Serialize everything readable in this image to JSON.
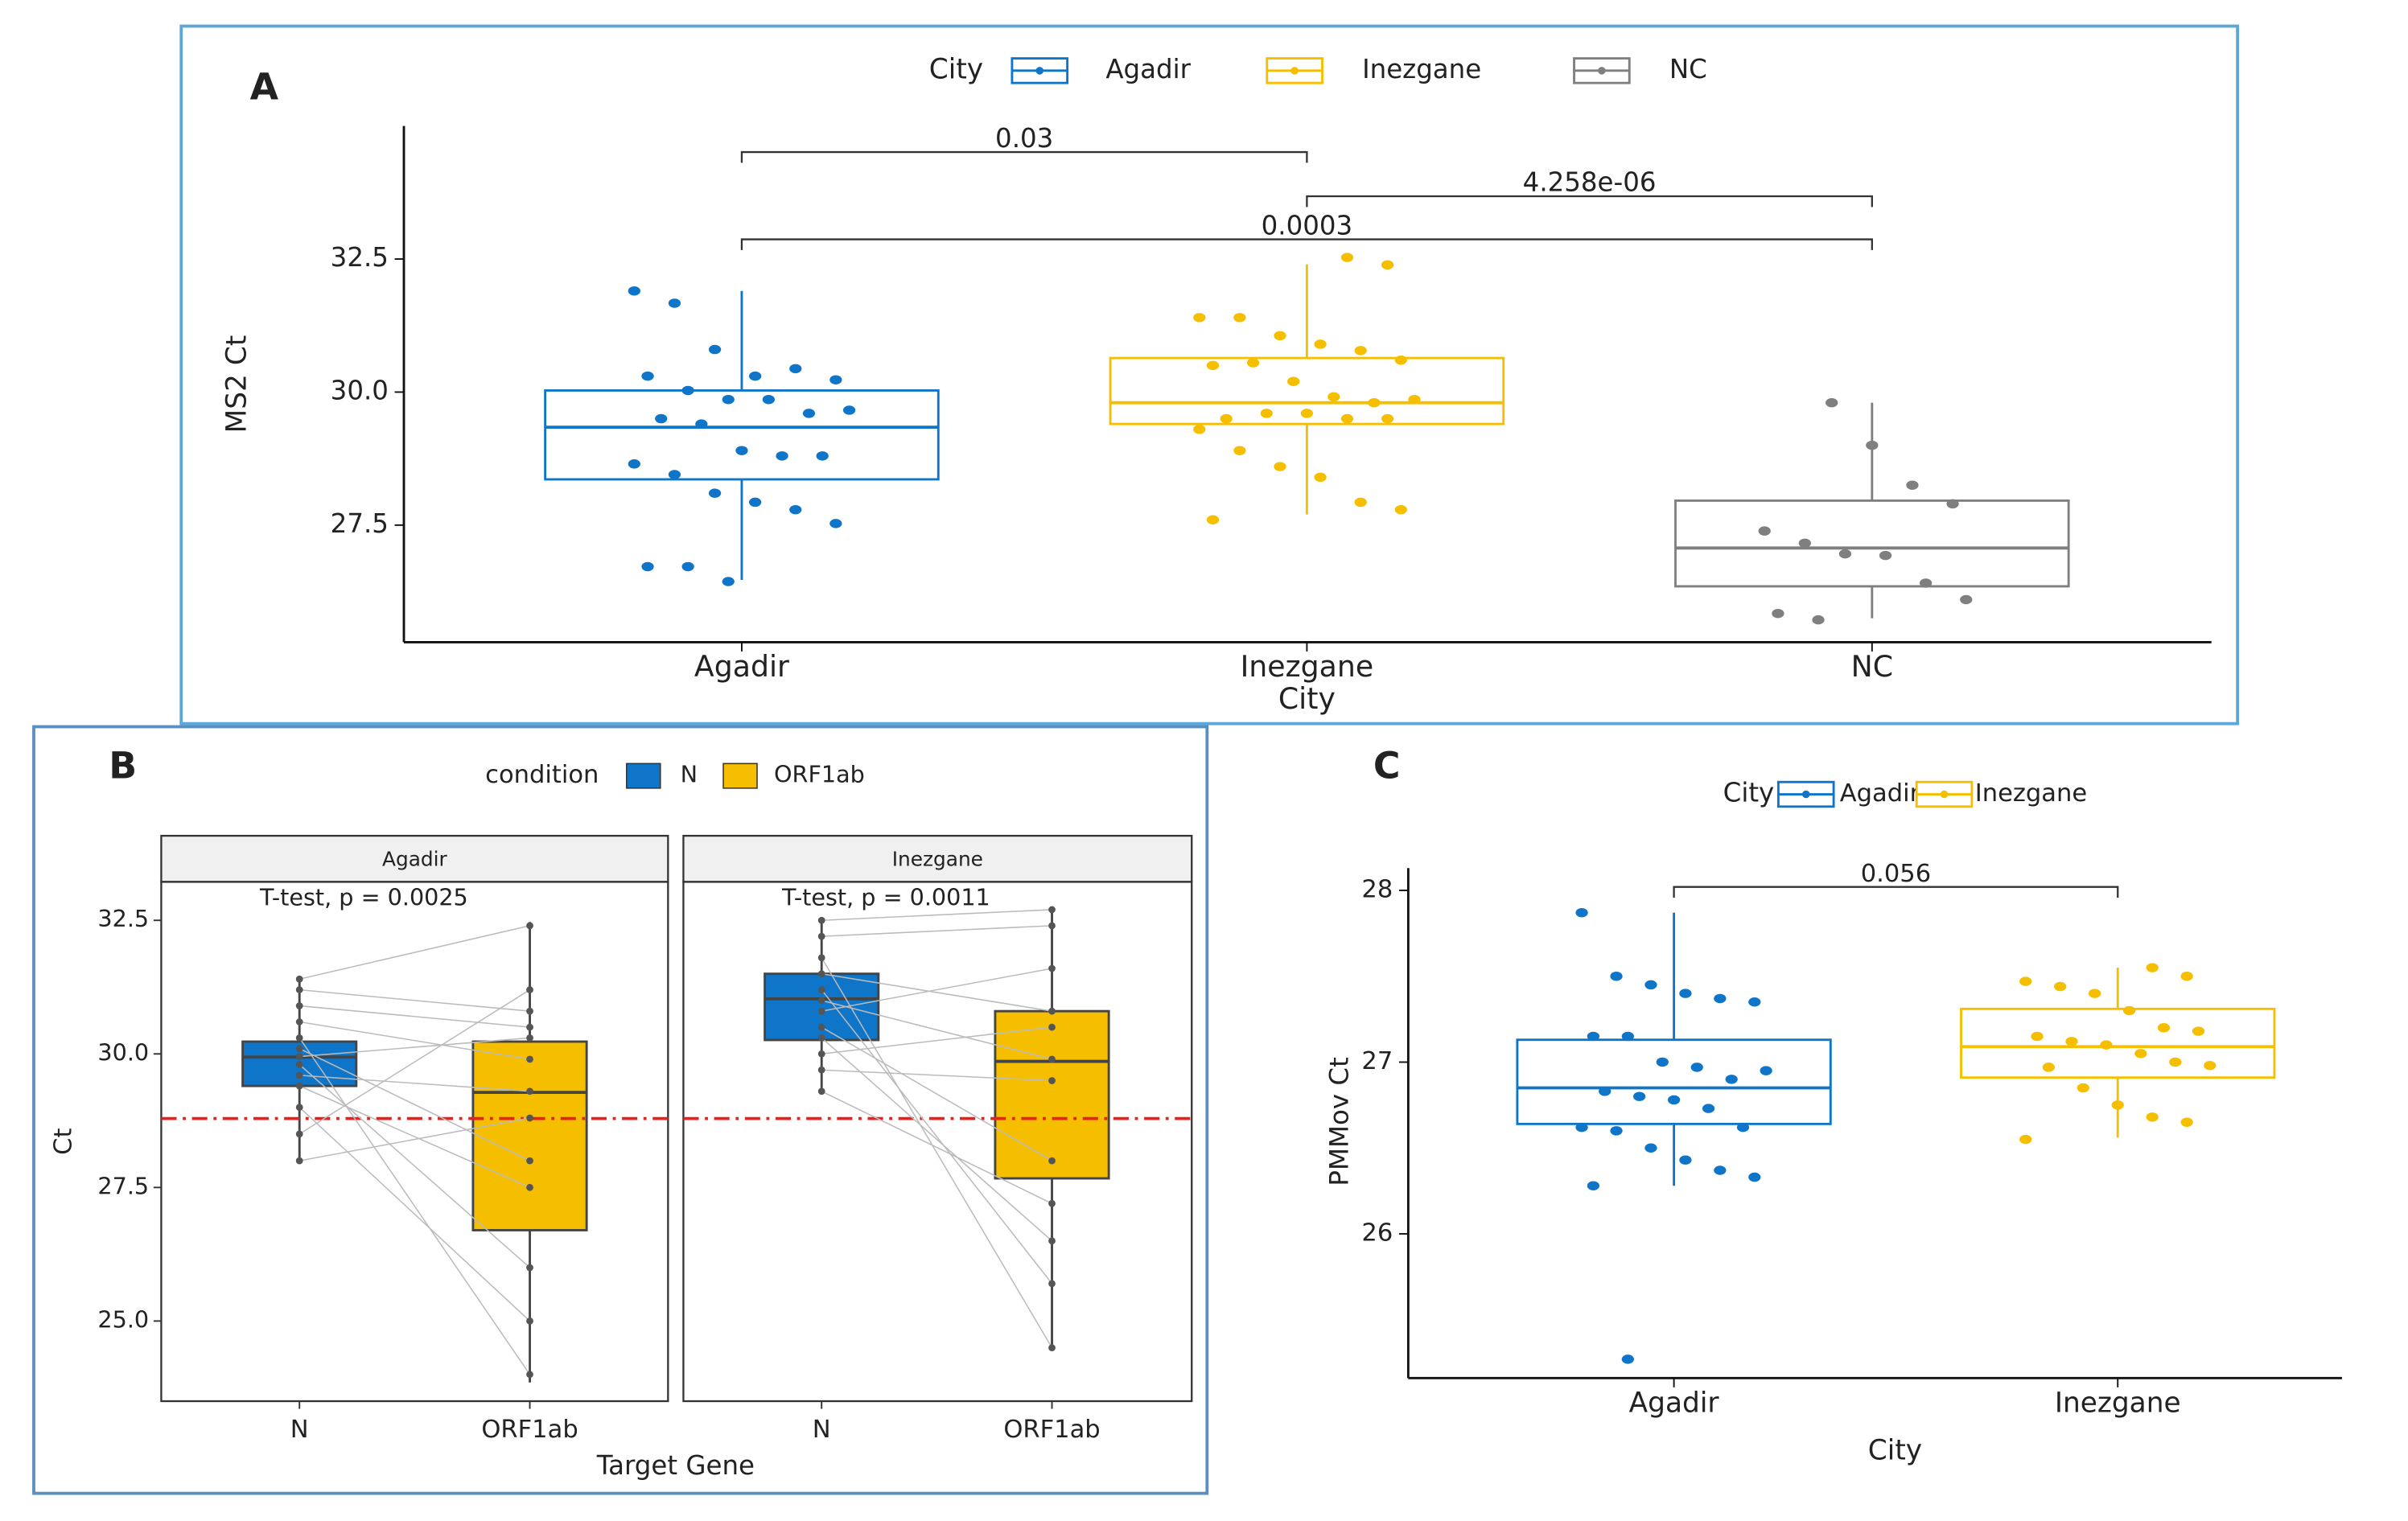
{
  "chart_data": [
    {
      "type": "box",
      "panel": "A",
      "legend_title": "City",
      "x_label": "City",
      "y_label": "MS2 Ct",
      "ylim": [
        25.3,
        35.0
      ],
      "yticks": [
        {
          "value": 27.5,
          "label": "27.5"
        },
        {
          "value": 30,
          "label": "30.0"
        },
        {
          "value": 32.5,
          "label": "32.5"
        }
      ],
      "series": [
        {
          "name": "Agadir",
          "color": "#0f75c9",
          "box": {
            "min": 26.47,
            "q1": 28.36,
            "median": 29.34,
            "q3": 30.03,
            "max": 31.9
          },
          "points": [
            31.9,
            31.67,
            30.8,
            30.3,
            30.44,
            30.23,
            30.3,
            30.03,
            29.86,
            29.86,
            29.6,
            29.66,
            29.5,
            29.4,
            28.9,
            28.8,
            28.8,
            28.65,
            28.45,
            28.1,
            27.93,
            27.79,
            27.53,
            26.72,
            26.72,
            26.44
          ]
        },
        {
          "name": "Inezgane",
          "color": "#f5bf00",
          "box": {
            "min": 27.7,
            "q1": 29.4,
            "median": 29.8,
            "q3": 30.64,
            "max": 32.4
          },
          "points": [
            32.53,
            32.39,
            31.4,
            31.4,
            31.06,
            30.9,
            30.78,
            30.6,
            30.5,
            30.55,
            30.2,
            29.91,
            29.8,
            29.86,
            29.5,
            29.6,
            29.6,
            29.5,
            29.5,
            29.3,
            28.9,
            28.6,
            28.4,
            27.93,
            27.79,
            27.6
          ]
        },
        {
          "name": "NC",
          "color": "#7f7f7f",
          "box": {
            "min": 25.75,
            "q1": 26.35,
            "median": 27.07,
            "q3": 27.96,
            "max": 29.8
          },
          "points": [
            29.8,
            29.0,
            28.25,
            27.9,
            27.39,
            27.16,
            26.96,
            26.93,
            26.41,
            26.1,
            25.84,
            25.72
          ]
        }
      ],
      "annotations": [
        {
          "label": "0.03",
          "from": 0,
          "to": 1,
          "y": 34.51
        },
        {
          "label": "4.258e-06",
          "from": 1,
          "to": 2,
          "y": 33.68
        },
        {
          "label": "0.0003",
          "from": 0,
          "to": 2,
          "y": 32.87
        }
      ]
    },
    {
      "type": "paired_box",
      "panel": "B",
      "legend_title": "condition",
      "x_label": "Target Gene",
      "y_label": "Ct",
      "ylim": [
        23.5,
        33.22
      ],
      "yticks": [
        {
          "value": 25,
          "label": "25.0"
        },
        27.5,
        {
          "value": 30,
          "label": "30.0"
        },
        32.5
      ],
      "categories": [
        "N",
        "ORF1ab"
      ],
      "series": [
        {
          "name": "N",
          "color": "#0f75c9"
        },
        {
          "name": "ORF1ab",
          "color": "#f5bf00"
        }
      ],
      "hline": 28.79,
      "hline_color": "#e8201c",
      "facets": [
        {
          "name": "Agadir",
          "test_label": "T-test, p = 0.0025",
          "boxes": [
            {
              "min": 28.0,
              "q1": 29.4,
              "median": 29.94,
              "q3": 30.23,
              "max": 31.46
            },
            {
              "min": 23.85,
              "q1": 26.7,
              "median": 29.28,
              "q3": 30.23,
              "max": 32.47
            }
          ],
          "points": [
            [
              31.4,
              31.2,
              30.9,
              30.6,
              30.3,
              30.1,
              29.95,
              29.8,
              29.6,
              29.4,
              29.0,
              28.5,
              28.0
            ],
            [
              32.4,
              30.8,
              30.5,
              29.9,
              24.0,
              28.0,
              30.3,
              26.0,
              29.3,
              27.5,
              25.0,
              31.2,
              28.8
            ]
          ]
        },
        {
          "name": "Inezgane",
          "test_label": "T-test, p = 0.0011",
          "boxes": [
            {
              "min": 29.3,
              "q1": 30.26,
              "median": 31.03,
              "q3": 31.5,
              "max": 32.56
            },
            {
              "min": 24.5,
              "q1": 27.67,
              "median": 29.86,
              "q3": 30.8,
              "max": 32.76
            }
          ],
          "points": [
            [
              32.5,
              32.2,
              31.8,
              31.5,
              31.2,
              31.0,
              30.8,
              30.5,
              30.3,
              30.0,
              29.7,
              29.3
            ],
            [
              32.7,
              32.4,
              24.5,
              30.8,
              25.7,
              29.9,
              31.6,
              28.0,
              26.5,
              30.5,
              29.5,
              27.2
            ]
          ]
        }
      ]
    },
    {
      "type": "box",
      "panel": "C",
      "legend_title": "City",
      "x_label": "City",
      "y_label": "PMMov Ct",
      "ylim": [
        25.16,
        28.13
      ],
      "yticks": [
        26,
        27,
        28
      ],
      "series": [
        {
          "name": "Agadir",
          "color": "#0f75c9",
          "box": {
            "min": 26.28,
            "q1": 26.64,
            "median": 26.85,
            "q3": 27.13,
            "max": 27.87
          },
          "points": [
            27.87,
            27.5,
            27.45,
            27.4,
            27.37,
            27.35,
            27.15,
            27.15,
            27.0,
            26.97,
            26.9,
            26.95,
            26.83,
            26.8,
            26.78,
            26.73,
            26.62,
            26.62,
            26.6,
            26.5,
            26.43,
            26.37,
            26.33,
            26.28,
            25.27
          ]
        },
        {
          "name": "Inezgane",
          "color": "#f5bf00",
          "box": {
            "min": 26.56,
            "q1": 26.91,
            "median": 27.09,
            "q3": 27.31,
            "max": 27.55
          },
          "points": [
            27.55,
            27.5,
            27.47,
            27.44,
            27.4,
            27.3,
            27.2,
            27.18,
            27.15,
            27.12,
            27.1,
            27.05,
            27.0,
            26.98,
            26.97,
            26.85,
            26.75,
            26.68,
            26.65,
            26.55
          ]
        }
      ],
      "annotations": [
        {
          "label": "0.056",
          "from": 0,
          "to": 1,
          "y": 28.02
        }
      ]
    }
  ]
}
